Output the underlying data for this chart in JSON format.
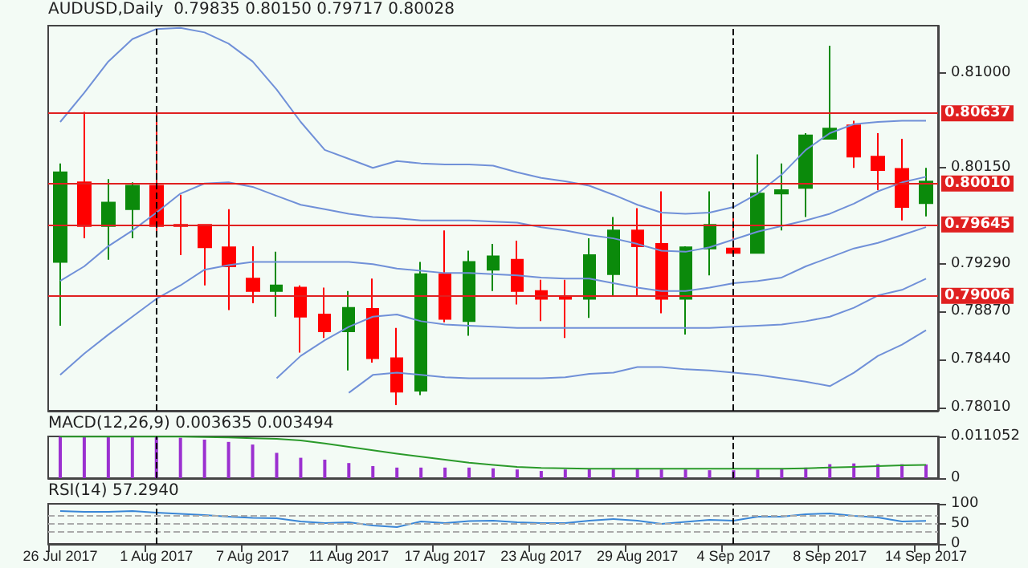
{
  "chart_data": [
    {
      "type": "candlestick",
      "title": "AUDUSD,Daily  0.79835 0.80150 0.79717 0.80028",
      "categories": [
        "26 Jul 2017",
        null,
        null,
        null,
        "1 Aug 2017",
        null,
        null,
        null,
        "7 Aug 2017",
        null,
        null,
        null,
        "11 Aug 2017",
        null,
        null,
        null,
        "17 Aug 2017",
        null,
        null,
        null,
        "23 Aug 2017",
        null,
        null,
        null,
        "29 Aug 2017",
        null,
        null,
        null,
        "4 Sep 2017",
        null,
        null,
        null,
        "8 Sep 2017",
        null,
        null,
        null,
        "14 Sep 2017"
      ],
      "ohlc": [
        [
          0.7931,
          0.8019,
          0.7874,
          0.8011
        ],
        [
          0.8002,
          0.8065,
          0.7952,
          0.7963
        ],
        [
          0.7963,
          0.8005,
          0.7933,
          0.7984
        ],
        [
          0.7978,
          0.8002,
          0.7952,
          0.7999
        ],
        [
          0.7999,
          0.8065,
          0.7958,
          0.7963
        ],
        [
          0.7964,
          0.7991,
          0.7937,
          0.7963
        ],
        [
          0.7964,
          0.7964,
          0.791,
          0.7944
        ],
        [
          0.7944,
          0.7978,
          0.7888,
          0.7927
        ],
        [
          0.7916,
          0.7945,
          0.7894,
          0.7905
        ],
        [
          0.7905,
          0.794,
          0.7882,
          0.791
        ],
        [
          0.7908,
          0.791,
          0.785,
          0.7882
        ],
        [
          0.7884,
          0.7908,
          0.7863,
          0.7869
        ],
        [
          0.7869,
          0.7905,
          0.7834,
          0.789
        ],
        [
          0.7889,
          0.7916,
          0.7841,
          0.7845
        ],
        [
          0.7845,
          0.7872,
          0.7803,
          0.7815
        ],
        [
          0.7816,
          0.7931,
          0.7812,
          0.792
        ],
        [
          0.792,
          0.7959,
          0.7877,
          0.788
        ],
        [
          0.7878,
          0.7941,
          0.7865,
          0.7931
        ],
        [
          0.7924,
          0.7947,
          0.7905,
          0.7936
        ],
        [
          0.7933,
          0.795,
          0.7893,
          0.7905
        ],
        [
          0.7905,
          0.7915,
          0.7878,
          0.7898
        ],
        [
          0.79,
          0.7915,
          0.7863,
          0.7898
        ],
        [
          0.7898,
          0.7952,
          0.7881,
          0.7937
        ],
        [
          0.792,
          0.7971,
          0.7901,
          0.7959
        ],
        [
          0.7959,
          0.7979,
          0.7901,
          0.7945
        ],
        [
          0.7947,
          0.7994,
          0.7885,
          0.7898
        ],
        [
          0.7898,
          0.7945,
          0.7866,
          0.7944
        ],
        [
          0.7943,
          0.7994,
          0.7919,
          0.7964
        ],
        [
          0.7943,
          0.7971,
          0.7936,
          0.7939
        ],
        [
          0.7939,
          0.8027,
          0.7939,
          0.7992
        ],
        [
          0.7992,
          0.8019,
          0.7959,
          0.7995
        ],
        [
          0.7997,
          0.8046,
          0.7971,
          0.8044
        ],
        [
          0.8041,
          0.8124,
          0.8041,
          0.805
        ],
        [
          0.8053,
          0.8057,
          0.8015,
          0.8025
        ],
        [
          0.8025,
          0.8046,
          0.7995,
          0.8013
        ],
        [
          0.8014,
          0.8041,
          0.7968,
          0.798
        ],
        [
          0.79835,
          0.8015,
          0.79717,
          0.80028
        ]
      ],
      "colors": [
        "#0b8a0b",
        "#ff0000",
        "#0b8a0b",
        "#0b8a0b",
        "#ff0000",
        "#ff0000",
        "#ff0000",
        "#ff0000",
        "#ff0000",
        "#0b8a0b",
        "#ff0000",
        "#ff0000",
        "#0b8a0b",
        "#ff0000",
        "#ff0000",
        "#0b8a0b",
        "#ff0000",
        "#0b8a0b",
        "#0b8a0b",
        "#ff0000",
        "#ff0000",
        "#ff0000",
        "#0b8a0b",
        "#0b8a0b",
        "#ff0000",
        "#ff0000",
        "#0b8a0b",
        "#0b8a0b",
        "#ff0000",
        "#0b8a0b",
        "#0b8a0b",
        "#0b8a0b",
        "#0b8a0b",
        "#ff0000",
        "#ff0000",
        "#ff0000",
        "#0b8a0b"
      ],
      "series": [
        {
          "type": "line",
          "color": "#7090d8",
          "values": [
            0.8056,
            0.8082,
            0.811,
            0.813,
            0.8139,
            0.814,
            0.8136,
            0.8126,
            0.811,
            0.8085,
            0.8056,
            0.8031,
            0.8023,
            0.8015,
            0.8021,
            0.8019,
            0.8018,
            0.8018,
            0.8017,
            0.8011,
            0.8006,
            0.8003,
            0.7999,
            0.7991,
            0.7982,
            0.7975,
            0.7974,
            0.7975,
            0.798,
            0.7992,
            0.8009,
            0.8031,
            0.8046,
            0.8054,
            0.8056,
            0.8057,
            0.8057
          ]
        },
        {
          "type": "line",
          "color": "#7090d8",
          "values": [
            0.7914,
            0.7927,
            0.7945,
            0.7959,
            0.7975,
            0.7992,
            0.8001,
            0.8002,
            0.7998,
            0.799,
            0.7982,
            0.7978,
            0.7974,
            0.7971,
            0.797,
            0.7968,
            0.7968,
            0.7968,
            0.7967,
            0.7966,
            0.7962,
            0.7959,
            0.7955,
            0.7952,
            0.7947,
            0.7941,
            0.794,
            0.7944,
            0.7951,
            0.7958,
            0.7963,
            0.7968,
            0.7974,
            0.7983,
            0.7994,
            0.8002,
            0.8007
          ]
        },
        {
          "type": "line",
          "color": "#7090d8",
          "values": [
            0.783,
            0.7849,
            0.7866,
            0.7882,
            0.7898,
            0.791,
            0.7924,
            0.7928,
            0.7931,
            0.7931,
            0.7931,
            0.7931,
            0.7931,
            0.7929,
            0.7925,
            0.7923,
            0.7921,
            0.7921,
            0.792,
            0.7919,
            0.7917,
            0.7916,
            0.7916,
            0.7912,
            0.7908,
            0.7905,
            0.7905,
            0.7908,
            0.7912,
            0.7914,
            0.7917,
            0.7927,
            0.7935,
            0.7943,
            0.7948,
            0.7955,
            0.7962
          ]
        },
        {
          "type": "line",
          "color": "#7090d8",
          "values": [
            null,
            null,
            null,
            null,
            null,
            null,
            null,
            null,
            null,
            0.7827,
            0.7847,
            0.7861,
            0.7873,
            0.7882,
            0.7884,
            0.7878,
            0.7875,
            0.7874,
            0.7873,
            0.7872,
            0.7872,
            0.7872,
            0.7872,
            0.7872,
            0.7872,
            0.7872,
            0.7872,
            0.7872,
            0.7873,
            0.7874,
            0.7875,
            0.7878,
            0.7882,
            0.789,
            0.7901,
            0.7906,
            0.7916
          ]
        },
        {
          "type": "line",
          "color": "#7090d8",
          "values": [
            null,
            null,
            null,
            null,
            null,
            null,
            null,
            null,
            null,
            null,
            null,
            null,
            0.7814,
            0.783,
            0.7832,
            0.783,
            0.7828,
            0.7827,
            0.7827,
            0.7827,
            0.7827,
            0.7828,
            0.7831,
            0.7832,
            0.7837,
            0.7837,
            0.7835,
            0.7834,
            0.7832,
            0.783,
            0.7827,
            0.7824,
            0.782,
            0.7832,
            0.7847,
            0.7857,
            0.787
          ]
        }
      ],
      "ylim": [
        0.7798,
        0.8142
      ],
      "yticks": [
        {
          "value": 0.7801,
          "label": "0.78010"
        },
        {
          "value": 0.7844,
          "label": "0.78440"
        },
        {
          "value": 0.7887,
          "label": "0.78870"
        },
        {
          "value": 0.7929,
          "label": "0.79290"
        },
        {
          "value": 0.8015,
          "label": "0.80150"
        },
        {
          "value": 0.81,
          "label": "0.81000"
        }
      ],
      "ref_lines": [
        {
          "axis": "y",
          "value": 0.80637,
          "label": "0.80637",
          "color": "#e02020",
          "line_style": "solid"
        },
        {
          "axis": "y",
          "value": 0.8001,
          "label": "0.80010",
          "color": "#e02020",
          "line_style": "solid"
        },
        {
          "axis": "y",
          "value": 0.79645,
          "label": "0.79645",
          "color": "#e02020",
          "line_style": "solid"
        },
        {
          "axis": "y",
          "value": 0.79006,
          "label": "0.79006",
          "color": "#e02020",
          "line_style": "solid"
        },
        {
          "axis": "x",
          "value": "1 Aug 2017",
          "color": "#000000",
          "line_style": "dashed"
        },
        {
          "axis": "x",
          "value": "4 Sep 2017",
          "color": "#000000",
          "line_style": "dashed"
        }
      ],
      "tick_labels": "y"
    },
    {
      "type": "bar",
      "title": "MACD(12,26,9) 0.003635 0.003494",
      "categories": [
        "26 Jul 2017",
        null,
        null,
        null,
        "1 Aug 2017",
        null,
        null,
        null,
        "7 Aug 2017",
        null,
        null,
        null,
        "11 Aug 2017",
        null,
        null,
        null,
        "17 Aug 2017",
        null,
        null,
        null,
        "23 Aug 2017",
        null,
        null,
        null,
        "29 Aug 2017",
        null,
        null,
        null,
        "4 Sep 2017",
        null,
        null,
        null,
        "8 Sep 2017",
        null,
        null,
        null,
        "14 Sep 2017"
      ],
      "series": [
        {
          "color": "#9b30d0",
          "values": [
            0.011,
            0.011,
            0.011,
            0.011,
            0.011,
            0.0107,
            0.0102,
            0.0096,
            0.0089,
            0.0067,
            0.0054,
            0.0049,
            0.004,
            0.0032,
            0.0028,
            0.0028,
            0.0028,
            0.0028,
            0.0026,
            0.0023,
            0.0019,
            0.0023,
            0.0025,
            0.0026,
            0.0026,
            0.0023,
            0.0023,
            0.0021,
            0.0021,
            0.0023,
            0.0026,
            0.0028,
            0.0037,
            0.0039,
            0.0037,
            0.0037,
            0.003635
          ]
        },
        {
          "type": "line",
          "color": "#2a9a2a",
          "values": [
            0.011,
            0.011,
            0.011,
            0.011,
            0.011,
            0.011,
            0.0109,
            0.0108,
            0.0106,
            0.0104,
            0.01,
            0.0092,
            0.0083,
            0.0074,
            0.0065,
            0.0057,
            0.0049,
            0.0041,
            0.0035,
            0.003,
            0.0027,
            0.0026,
            0.0025,
            0.0025,
            0.0025,
            0.0025,
            0.0025,
            0.0025,
            0.0025,
            0.0025,
            0.0025,
            0.0026,
            0.0028,
            0.003,
            0.0032,
            0.0034,
            0.003494
          ]
        }
      ],
      "ylim": [
        0,
        0.011052
      ],
      "yticks": [
        0,
        0.011052
      ],
      "ref_lines": [
        {
          "axis": "x",
          "value": "1 Aug 2017",
          "color": "#000000",
          "line_style": "dashed"
        },
        {
          "axis": "x",
          "value": "4 Sep 2017",
          "color": "#000000",
          "line_style": "dashed"
        }
      ],
      "tick_labels": "y"
    },
    {
      "type": "line",
      "title": "RSI(14) 57.2940",
      "categories": [
        "26 Jul 2017",
        null,
        null,
        null,
        "1 Aug 2017",
        null,
        null,
        null,
        "7 Aug 2017",
        null,
        null,
        null,
        "11 Aug 2017",
        null,
        null,
        null,
        "17 Aug 2017",
        null,
        null,
        null,
        "23 Aug 2017",
        null,
        null,
        null,
        "29 Aug 2017",
        null,
        null,
        null,
        "4 Sep 2017",
        null,
        null,
        null,
        "8 Sep 2017",
        null,
        null,
        null,
        "14 Sep 2017"
      ],
      "values": [
        82,
        80,
        80,
        82,
        78,
        75,
        72,
        68,
        65,
        64,
        56,
        52,
        54,
        46,
        42,
        56,
        52,
        57,
        58,
        54,
        52,
        52,
        58,
        62,
        58,
        50,
        55,
        60,
        58,
        68,
        68,
        74,
        76,
        70,
        66,
        56,
        57.294
      ],
      "color": "#3a86d6",
      "ylim": [
        0,
        100
      ],
      "yticks": [
        0,
        50,
        100
      ],
      "ref_lines": [
        {
          "axis": "y",
          "value": 30,
          "color": "#aaaaaa",
          "line_style": "dashed"
        },
        {
          "axis": "y",
          "value": 50,
          "color": "#aaaaaa",
          "line_style": "dashed"
        },
        {
          "axis": "y",
          "value": 70,
          "color": "#aaaaaa",
          "line_style": "dashed"
        },
        {
          "axis": "x",
          "value": "1 Aug 2017",
          "color": "#000000",
          "line_style": "dashed"
        },
        {
          "axis": "x",
          "value": "4 Sep 2017",
          "color": "#000000",
          "line_style": "dashed"
        }
      ]
    }
  ]
}
